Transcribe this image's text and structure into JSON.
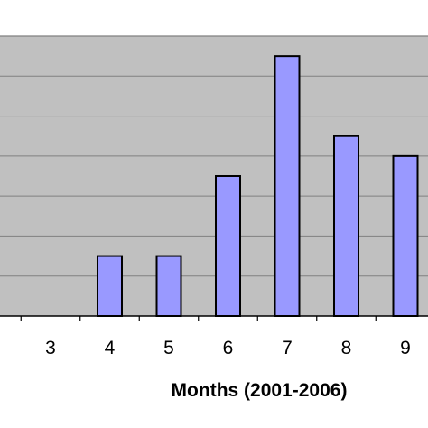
{
  "chart_data": {
    "type": "bar",
    "title": "",
    "xlabel": "Months (2001-2006)",
    "ylabel": "",
    "categories": [
      "3",
      "4",
      "5",
      "6",
      "7",
      "8",
      "9"
    ],
    "values": [
      0,
      1.5,
      1.5,
      3.5,
      6.5,
      4.5,
      4
    ],
    "ylim": [
      0,
      7
    ],
    "grid": true,
    "legend": "none",
    "colors": {
      "plot_background": "#c0c0c0",
      "bar_fill": "#9999ff",
      "bar_stroke": "#000000",
      "gridline": "#808080"
    }
  }
}
